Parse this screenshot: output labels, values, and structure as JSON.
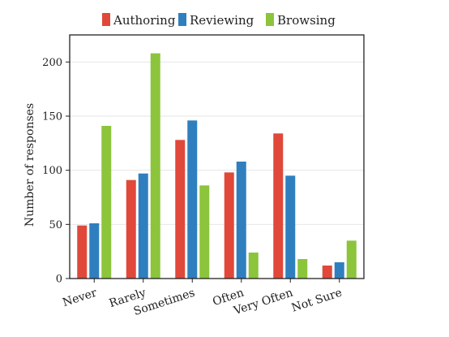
{
  "chart_data": {
    "type": "bar",
    "title": "",
    "xlabel": "",
    "ylabel": "Number of responses",
    "ylim": [
      0,
      225
    ],
    "yticks": [
      0,
      50,
      100,
      150,
      200
    ],
    "grid": true,
    "legend_position": "top",
    "categories": [
      "Never",
      "Rarely",
      "Sometimes",
      "Often",
      "Very Often",
      "Not Sure"
    ],
    "series": [
      {
        "name": "Authoring",
        "color": "#e0483a",
        "values": [
          49,
          91,
          128,
          98,
          134,
          12
        ]
      },
      {
        "name": "Reviewing",
        "color": "#2f7fbf",
        "values": [
          51,
          97,
          146,
          108,
          95,
          15
        ]
      },
      {
        "name": "Browsing",
        "color": "#8cc43c",
        "values": [
          141,
          208,
          86,
          24,
          18,
          35
        ]
      }
    ]
  }
}
